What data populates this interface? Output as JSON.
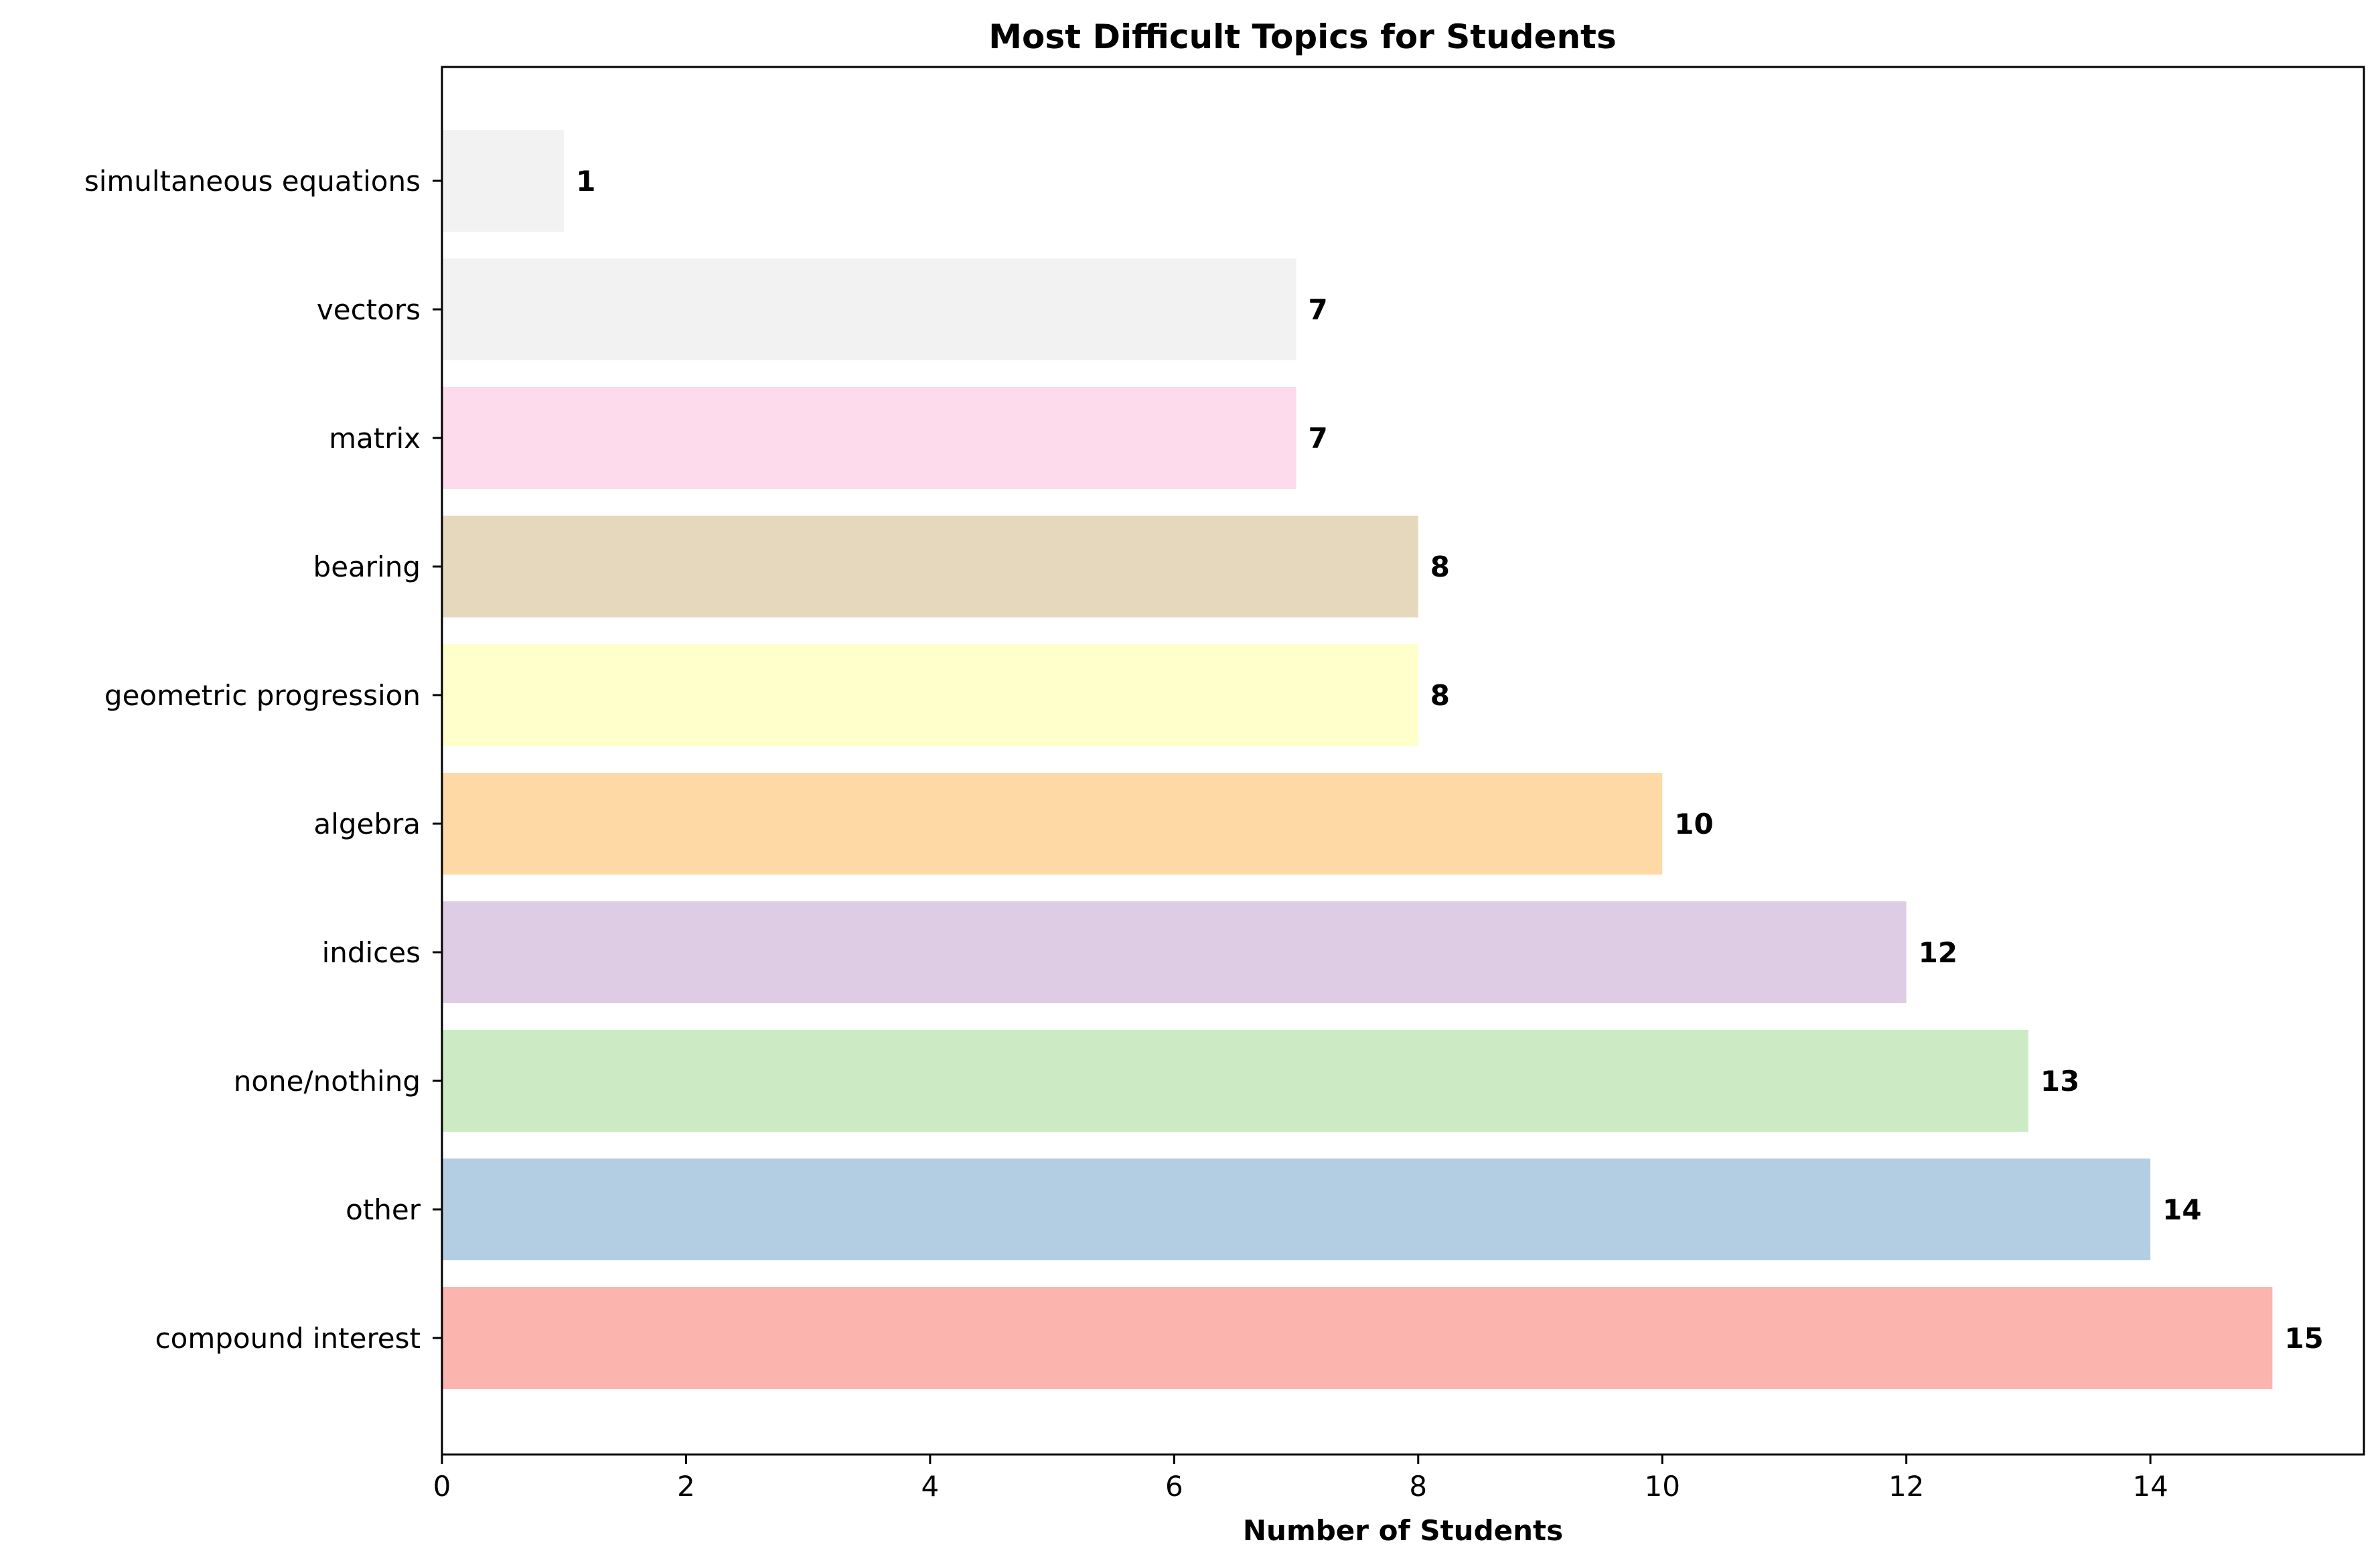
{
  "chart_data": {
    "type": "bar",
    "orientation": "horizontal",
    "title": "Most Difficult Topics for Students",
    "xlabel": "Number of Students",
    "ylabel": "",
    "categories": [
      "compound interest",
      "other",
      "none/nothing",
      "indices",
      "algebra",
      "geometric progression",
      "bearing",
      "matrix",
      "vectors",
      "simultaneous equations"
    ],
    "values": [
      15,
      14,
      13,
      12,
      10,
      8,
      8,
      7,
      7,
      1
    ],
    "data_labels": [
      "15",
      "14",
      "13",
      "12",
      "10",
      "8",
      "8",
      "7",
      "7",
      "1"
    ],
    "colors": [
      "#fbb4ae",
      "#b3cde3",
      "#ccebc5",
      "#decbe4",
      "#fed9a6",
      "#ffffcc",
      "#e5d8bd",
      "#fddaec",
      "#f2f2f2",
      "#f2f2f2"
    ],
    "xlim": [
      0,
      15.75
    ],
    "xticks": [
      0,
      2,
      4,
      6,
      8,
      10,
      12,
      14
    ],
    "xtick_labels": [
      "0",
      "2",
      "4",
      "6",
      "8",
      "10",
      "12",
      "14"
    ],
    "grid": false,
    "legend": "none"
  }
}
